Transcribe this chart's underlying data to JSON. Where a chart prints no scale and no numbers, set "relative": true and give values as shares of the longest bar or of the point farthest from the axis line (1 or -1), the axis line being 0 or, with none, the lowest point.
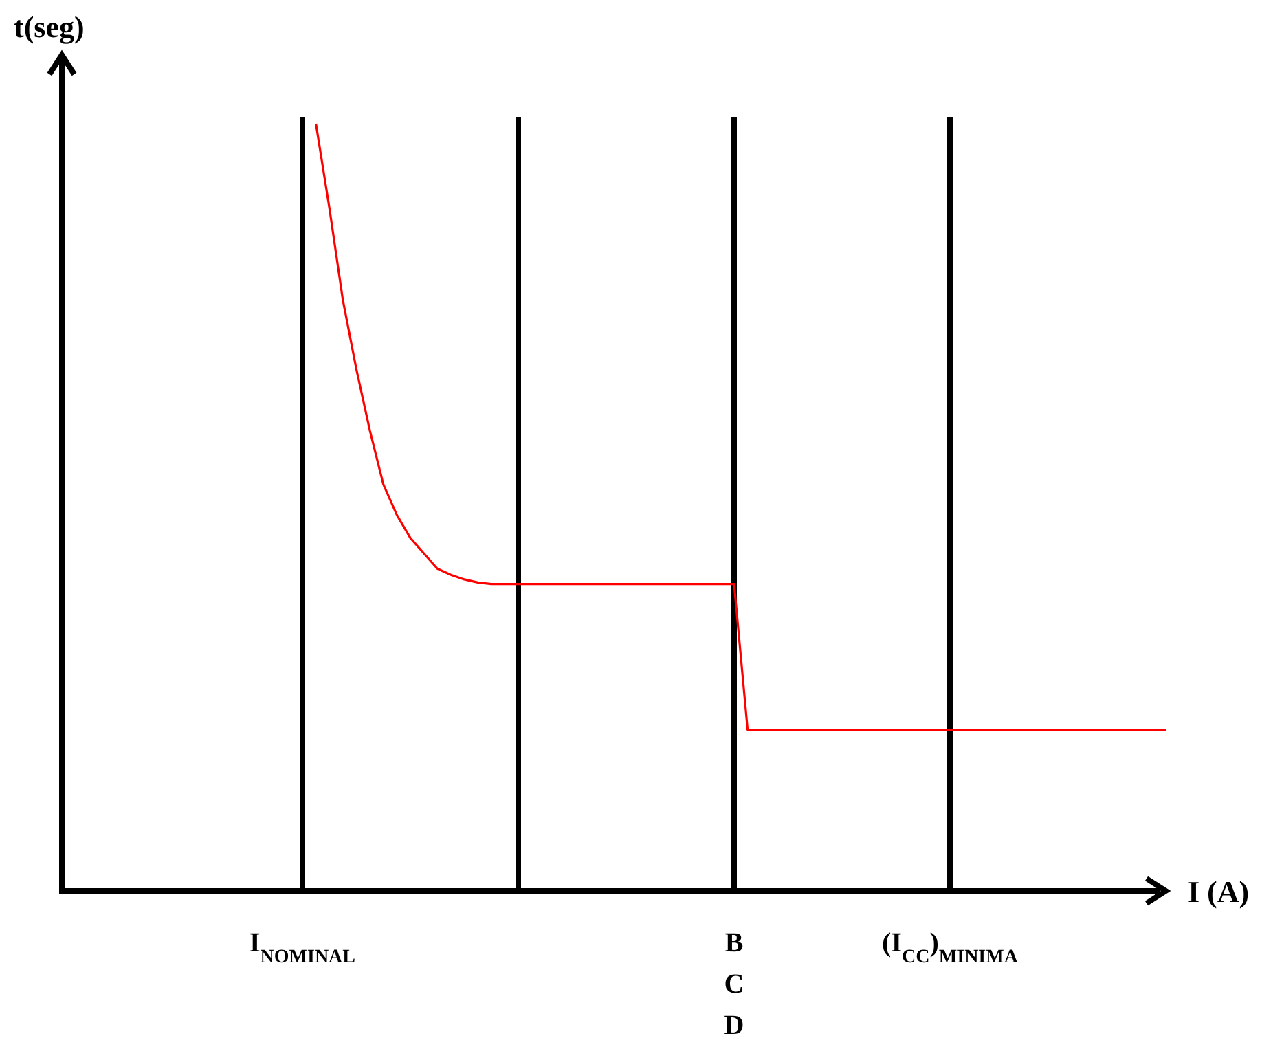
{
  "chart_data": {
    "type": "line",
    "relative": true,
    "xlabel": "I (A)",
    "ylabel": "t(seg)",
    "categories": [
      null,
      null,
      null,
      null,
      null,
      null,
      null,
      null,
      null,
      null,
      null,
      null,
      null,
      null,
      null,
      null,
      "I$_{NOMINAL}$",
      null,
      null,
      null,
      null,
      null,
      null,
      null,
      null,
      null,
      null,
      null,
      null,
      null,
      null,
      null,
      null,
      null,
      null,
      null,
      null,
      null,
      null,
      null,
      null,
      null,
      null,
      null,
      null,
      null,
      null,
      null,
      "B\nC\nD",
      null,
      null,
      null,
      null,
      null,
      null,
      null,
      null,
      null,
      null,
      null,
      null,
      null,
      null,
      null,
      "(I$_{CC}$)$_{MINIMA}$",
      null,
      null,
      null,
      null,
      null,
      null,
      null,
      null,
      null,
      null,
      null,
      null,
      null,
      null,
      null,
      null
    ],
    "series": [
      {
        "color": "#ff0000",
        "values": [
          null,
          null,
          null,
          null,
          null,
          null,
          null,
          null,
          null,
          null,
          null,
          null,
          null,
          null,
          null,
          null,
          null,
          1,
          0.89,
          0.77,
          0.68,
          0.6,
          0.53,
          0.49,
          0.46,
          0.44,
          0.42,
          0.412,
          0.406,
          0.402,
          0.4,
          0.4,
          0.4,
          0.4,
          0.4,
          0.4,
          0.4,
          0.4,
          0.4,
          0.4,
          0.4,
          0.4,
          0.4,
          0.4,
          0.4,
          0.4,
          0.4,
          0.4,
          0.4,
          0.21,
          0.21,
          0.21,
          0.21,
          0.21,
          0.21,
          0.21,
          0.21,
          0.21,
          0.21,
          0.21,
          0.21,
          0.21,
          0.21,
          0.21,
          0.21,
          0.21,
          0.21,
          0.21,
          0.21,
          0.21,
          0.21,
          0.21,
          0.21,
          0.21,
          0.21,
          0.21,
          0.21,
          0.21,
          0.21,
          0.21,
          0.21
        ]
      }
    ],
    "grid": "x"
  }
}
